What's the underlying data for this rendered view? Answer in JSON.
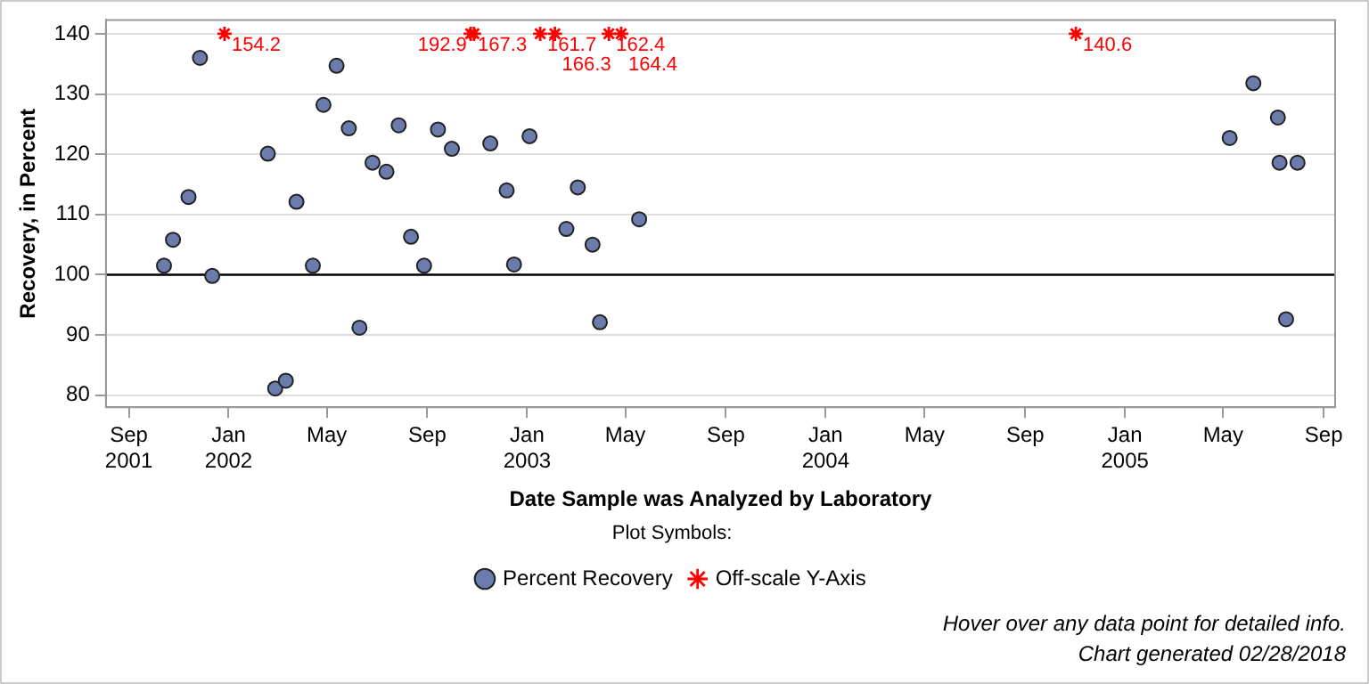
{
  "chart_data": {
    "type": "scatter",
    "xlabel": "Date Sample was Analyzed by Laboratory",
    "ylabel": "Recovery, in Percent",
    "legend_title": "Plot Symbols:",
    "legend": "bottom",
    "grid": "y",
    "xlim": [
      "2001-08-04",
      "2005-09-15"
    ],
    "xticks": [
      {
        "value": "2001-09",
        "label": "Sep\n2001"
      },
      {
        "value": "2002-01",
        "label": "Jan\n2002"
      },
      {
        "value": "2002-05",
        "label": "May"
      },
      {
        "value": "2002-09",
        "label": "Sep"
      },
      {
        "value": "2003-01",
        "label": "Jan\n2003"
      },
      {
        "value": "2003-05",
        "label": "May"
      },
      {
        "value": "2003-09",
        "label": "Sep"
      },
      {
        "value": "2004-01",
        "label": "Jan\n2004"
      },
      {
        "value": "2004-05",
        "label": "May"
      },
      {
        "value": "2004-09",
        "label": "Sep"
      },
      {
        "value": "2005-01",
        "label": "Jan\n2005"
      },
      {
        "value": "2005-05",
        "label": "May"
      },
      {
        "value": "2005-09",
        "label": "Sep"
      }
    ],
    "ylim": [
      78,
      142.3
    ],
    "yticks": [
      80,
      90,
      100,
      110,
      120,
      130,
      140
    ],
    "ref_lines": [
      {
        "axis": "y",
        "value": 100,
        "color": "#000000"
      }
    ],
    "annotations": [
      "Hover over any data point for detailed info.",
      "Chart generated 02/28/2018",
      {
        "text": "154.2",
        "x": "2001-12-27",
        "y": 140
      },
      {
        "text": "167.3",
        "x": "2002-10-24",
        "y": 140
      },
      {
        "text": "192.9",
        "x": "2002-10-28",
        "y": 140
      },
      {
        "text": "161.7",
        "x": "2003-01-17",
        "y": 140
      },
      {
        "text": "166.3",
        "x": "2003-02-04",
        "y": 140
      },
      {
        "text": "162.4",
        "x": "2003-04-11",
        "y": 140
      },
      {
        "text": "164.4",
        "x": "2003-04-26",
        "y": 140
      },
      {
        "text": "140.6",
        "x": "2004-11-02",
        "y": 140
      }
    ],
    "series": [
      {
        "name": "Percent Recovery",
        "color": "#6b7bab",
        "marker": "circle",
        "x": [
          "2001-10-14",
          "2001-10-25",
          "2001-11-13",
          "2001-11-27",
          "2001-12-12",
          "2002-02-18",
          "2002-02-27",
          "2002-03-12",
          "2002-03-25",
          "2002-04-14",
          "2002-04-27",
          "2002-05-13",
          "2002-05-28",
          "2002-06-10",
          "2002-06-26",
          "2002-07-13",
          "2002-07-28",
          "2002-08-12",
          "2002-08-28",
          "2002-09-14",
          "2002-10-01",
          "2002-11-17",
          "2002-12-07",
          "2002-12-16",
          "2003-01-04",
          "2003-02-18",
          "2003-03-04",
          "2003-03-22",
          "2003-03-31",
          "2003-05-18",
          "2005-05-09",
          "2005-06-07",
          "2005-07-07",
          "2005-07-09",
          "2005-07-17",
          "2005-07-31"
        ],
        "values": [
          101.5,
          105.8,
          112.9,
          136.0,
          99.8,
          120.1,
          81.1,
          82.4,
          112.1,
          101.5,
          128.2,
          134.7,
          124.3,
          91.2,
          118.6,
          117.1,
          124.8,
          106.3,
          101.5,
          124.1,
          120.9,
          121.8,
          114.0,
          101.7,
          123.0,
          107.6,
          114.5,
          105.0,
          92.1,
          109.2,
          122.7,
          131.8,
          126.1,
          118.6,
          92.6,
          118.6
        ]
      },
      {
        "name": "Off-scale Y-Axis",
        "color": "#ff0000",
        "marker": "cross",
        "x": [
          "2001-12-27",
          "2002-10-24",
          "2002-10-28",
          "2003-01-17",
          "2003-02-04",
          "2003-04-11",
          "2003-04-26",
          "2004-11-02"
        ],
        "values": [
          140,
          140,
          140,
          140,
          140,
          140,
          140,
          140
        ]
      }
    ]
  }
}
